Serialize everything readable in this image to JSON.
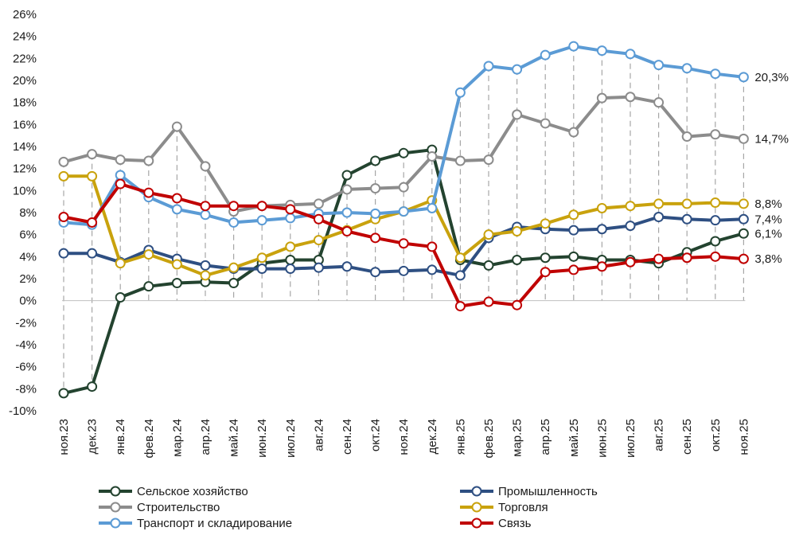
{
  "chart_data": {
    "type": "line",
    "title": "",
    "xlabel": "",
    "ylabel": "",
    "ylim": [
      -10,
      26
    ],
    "y_tick_step": 2,
    "y_tick_labels": [
      "-10%",
      "-8%",
      "-6%",
      "-4%",
      "-2%",
      "0%",
      "2%",
      "4%",
      "6%",
      "8%",
      "10%",
      "12%",
      "14%",
      "16%",
      "18%",
      "20%",
      "22%",
      "24%",
      "26%"
    ],
    "categories": [
      "ноя.23",
      "дек.23",
      "янв.24",
      "фев.24",
      "мар.24",
      "апр.24",
      "май.24",
      "июн.24",
      "июл.24",
      "авг.24",
      "сен.24",
      "окт.24",
      "ноя.24",
      "дек.24",
      "янв.25",
      "фев.25",
      "мар.25",
      "апр.25",
      "май.25",
      "июн.25",
      "июл.25",
      "авг.25",
      "сен.25",
      "окт.25",
      "ноя.25"
    ],
    "legend_position": "bottom",
    "series": [
      {
        "name": "Сельское хозяйство",
        "color": "#23432f",
        "values": [
          -8.4,
          -7.8,
          0.3,
          1.3,
          1.6,
          1.7,
          1.6,
          3.4,
          3.7,
          3.7,
          11.4,
          12.7,
          13.4,
          13.7,
          3.7,
          3.2,
          3.7,
          3.9,
          4.0,
          3.7,
          3.7,
          3.4,
          4.4,
          5.4,
          6.1
        ],
        "end_label": "6,1%"
      },
      {
        "name": "Промышленность",
        "color": "#2e4f82",
        "values": [
          4.3,
          4.3,
          3.5,
          4.6,
          3.8,
          3.2,
          2.9,
          2.9,
          2.9,
          3.0,
          3.1,
          2.6,
          2.7,
          2.8,
          2.3,
          5.7,
          6.7,
          6.5,
          6.4,
          6.5,
          6.8,
          7.6,
          7.4,
          7.3,
          7.4
        ],
        "end_label": "7,4%"
      },
      {
        "name": "Строительство",
        "color": "#8c8c8c",
        "values": [
          12.6,
          13.3,
          12.8,
          12.7,
          15.8,
          12.2,
          8.1,
          8.6,
          8.7,
          8.8,
          10.1,
          10.2,
          10.3,
          13.1,
          12.7,
          12.8,
          16.9,
          16.1,
          15.3,
          18.4,
          18.5,
          18.0,
          14.9,
          15.1,
          14.7
        ],
        "end_label": "14,7%"
      },
      {
        "name": "Торговля",
        "color": "#c9a20d",
        "values": [
          11.3,
          11.3,
          3.4,
          4.2,
          3.3,
          2.3,
          3.0,
          3.9,
          4.9,
          5.5,
          6.4,
          7.4,
          8.1,
          9.1,
          3.9,
          6.0,
          6.3,
          7.0,
          7.8,
          8.4,
          8.6,
          8.8,
          8.8,
          8.9,
          8.8
        ],
        "end_label": "8,8%"
      },
      {
        "name": "Транспорт и складирование",
        "color": "#5b9bd5",
        "values": [
          7.1,
          6.9,
          11.4,
          9.4,
          8.3,
          7.8,
          7.1,
          7.3,
          7.5,
          7.9,
          8.0,
          7.9,
          8.1,
          8.4,
          18.9,
          21.3,
          21.0,
          22.3,
          23.1,
          22.7,
          22.4,
          21.4,
          21.1,
          20.6,
          20.3
        ],
        "end_label": "20,3%"
      },
      {
        "name": "Связь",
        "color": "#c00000",
        "values": [
          7.6,
          7.1,
          10.6,
          9.8,
          9.3,
          8.6,
          8.6,
          8.6,
          8.3,
          7.4,
          6.3,
          5.7,
          5.2,
          4.9,
          -0.5,
          -0.1,
          -0.4,
          2.6,
          2.8,
          3.1,
          3.5,
          3.8,
          3.9,
          4.0,
          3.8
        ],
        "end_label": "3,8%"
      }
    ],
    "legend_items": [
      {
        "label": "Сельское хозяйство",
        "series": 0
      },
      {
        "label": "Промышленность",
        "series": 1
      },
      {
        "label": "Строительство",
        "series": 2
      },
      {
        "label": "Торговля",
        "series": 3
      },
      {
        "label": "Транспорт и складирование",
        "series": 4
      },
      {
        "label": "Связь",
        "series": 5
      }
    ]
  }
}
